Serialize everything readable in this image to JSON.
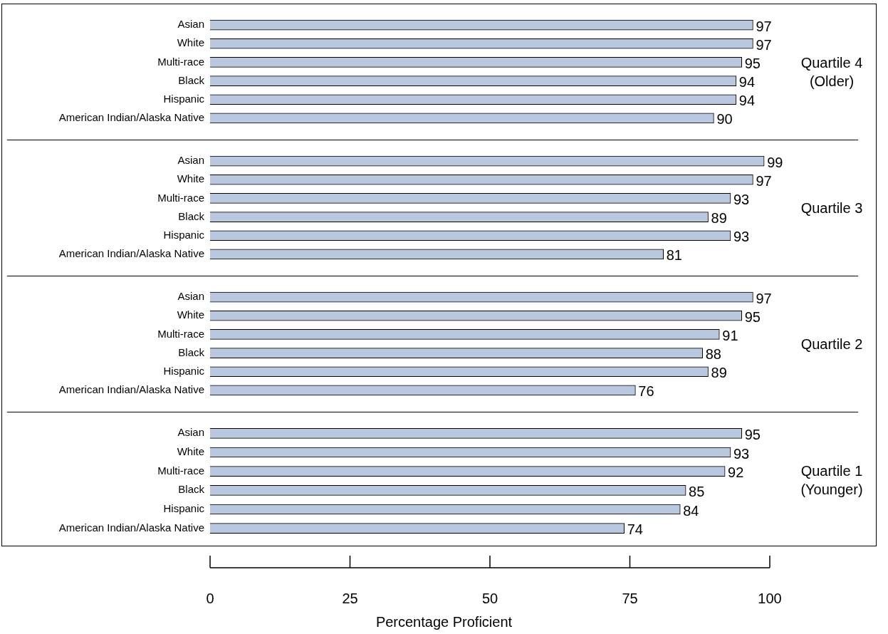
{
  "chart_data": [
    {
      "type": "bar",
      "orientation": "horizontal",
      "categories": [
        "Asian",
        "White",
        "Multi-race",
        "Black",
        "Hispanic",
        "American Indian/Alaska Native"
      ],
      "values": [
        97,
        97,
        95,
        94,
        94,
        90
      ],
      "color": "#bac8df",
      "xlim": [
        0,
        100
      ],
      "xticks": [
        0,
        25,
        50,
        75,
        100
      ],
      "data_labels": true,
      "tick_labels": "y",
      "annotations": [
        "Quartile 4 (Older)"
      ]
    },
    {
      "type": "bar",
      "orientation": "horizontal",
      "categories": [
        "Asian",
        "White",
        "Multi-race",
        "Black",
        "Hispanic",
        "American Indian/Alaska Native"
      ],
      "values": [
        99,
        97,
        93,
        89,
        93,
        81
      ],
      "color": "#bac8df",
      "xlim": [
        0,
        100
      ],
      "xticks": [
        0,
        25,
        50,
        75,
        100
      ],
      "data_labels": true,
      "tick_labels": "y",
      "annotations": [
        "Quartile 3"
      ]
    },
    {
      "type": "bar",
      "orientation": "horizontal",
      "categories": [
        "Asian",
        "White",
        "Multi-race",
        "Black",
        "Hispanic",
        "American Indian/Alaska Native"
      ],
      "values": [
        97,
        95,
        91,
        88,
        89,
        76
      ],
      "color": "#bac8df",
      "xlim": [
        0,
        100
      ],
      "xticks": [
        0,
        25,
        50,
        75,
        100
      ],
      "data_labels": true,
      "tick_labels": "y",
      "annotations": [
        "Quartile 2"
      ]
    },
    {
      "type": "bar",
      "orientation": "horizontal",
      "categories": [
        "Asian",
        "White",
        "Multi-race",
        "Black",
        "Hispanic",
        "American Indian/Alaska Native"
      ],
      "values": [
        95,
        93,
        92,
        85,
        84,
        74
      ],
      "color": "#bac8df",
      "xlim": [
        0,
        100
      ],
      "xticks": [
        0,
        25,
        50,
        75,
        100
      ],
      "data_labels": true,
      "xlabel": "Percentage Proficient",
      "annotations": [
        "Quartile 1 (Younger)"
      ]
    }
  ]
}
